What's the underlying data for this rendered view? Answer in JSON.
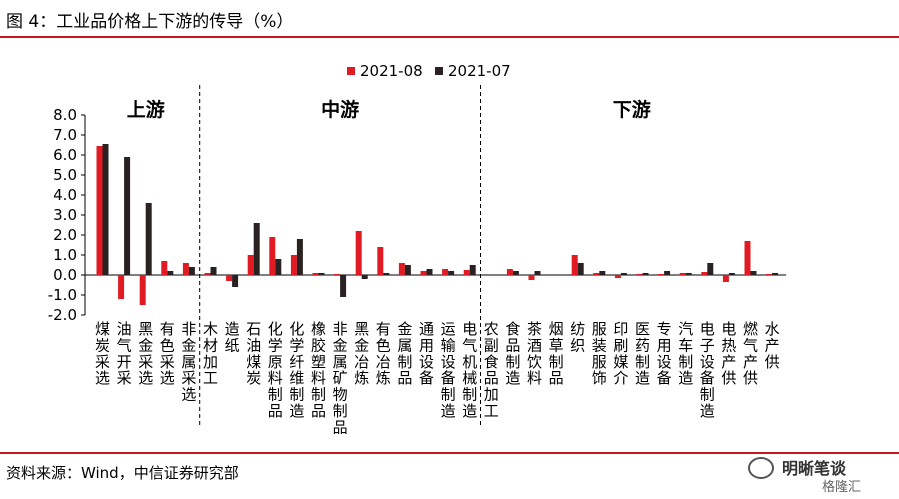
{
  "header": {
    "title": "图 4：工业品价格上下游的传导（%）"
  },
  "footer": {
    "source": "资料来源：Wind，中信证券研究部"
  },
  "watermark": {
    "name": "明晰笔谈",
    "sub": "格隆汇"
  },
  "colors": {
    "series_2021_08": "#e01b23",
    "series_2021_07": "#2a2222",
    "accent": "#c8161d"
  },
  "chart_data": {
    "type": "bar",
    "title": "",
    "xlabel": "",
    "ylabel": "",
    "ylim": [
      -2.0,
      8.0
    ],
    "yticks": [
      "8.0",
      "7.0",
      "6.0",
      "5.0",
      "4.0",
      "3.0",
      "2.0",
      "1.0",
      "0.0",
      "-1.0",
      "-2.0"
    ],
    "legend_placement": "top-center",
    "grid": false,
    "groups": [
      {
        "label": "上游",
        "start": 0,
        "end": 4
      },
      {
        "label": "中游",
        "start": 5,
        "end": 17
      },
      {
        "label": "下游",
        "start": 18,
        "end": 31
      }
    ],
    "categories": [
      "煤炭采选",
      "油气开采",
      "黑金采选",
      "有色采选",
      "非金属采选",
      "木材加工",
      "造纸",
      "石油煤炭",
      "化学原料制品",
      "化学纤维制造",
      "橡胶塑料制品",
      "非金属矿物制品",
      "黑金冶炼",
      "有色冶炼",
      "金属制品",
      "通用设备",
      "运输设备制造",
      "电气机械制造",
      "农副食品加工",
      "食品制造",
      "茶酒饮料",
      "烟草制品",
      "纺织",
      "服装服饰",
      "印刷媒介",
      "医药制造",
      "专用设备",
      "汽车制造",
      "电子设备制造",
      "电热产供",
      "燃气产供",
      "水产供"
    ],
    "series": [
      {
        "name": "2021-08",
        "values": [
          6.45,
          -1.2,
          -1.5,
          0.7,
          0.6,
          0.1,
          -0.3,
          1.0,
          1.9,
          1.0,
          0.1,
          0.05,
          2.2,
          1.4,
          0.6,
          0.2,
          0.3,
          0.25,
          0.0,
          0.3,
          -0.25,
          0.0,
          1.0,
          0.1,
          -0.15,
          0.05,
          0.05,
          0.1,
          0.15,
          -0.35,
          1.7,
          0.05
        ]
      },
      {
        "name": "2021-07",
        "values": [
          6.55,
          5.9,
          3.6,
          0.2,
          0.4,
          0.4,
          -0.6,
          2.6,
          0.8,
          1.8,
          0.1,
          -1.1,
          -0.2,
          0.1,
          0.5,
          0.3,
          0.2,
          0.5,
          0.0,
          0.2,
          0.2,
          0.0,
          0.6,
          0.2,
          0.1,
          0.1,
          0.2,
          0.1,
          0.6,
          0.1,
          0.2,
          0.1
        ]
      }
    ]
  }
}
